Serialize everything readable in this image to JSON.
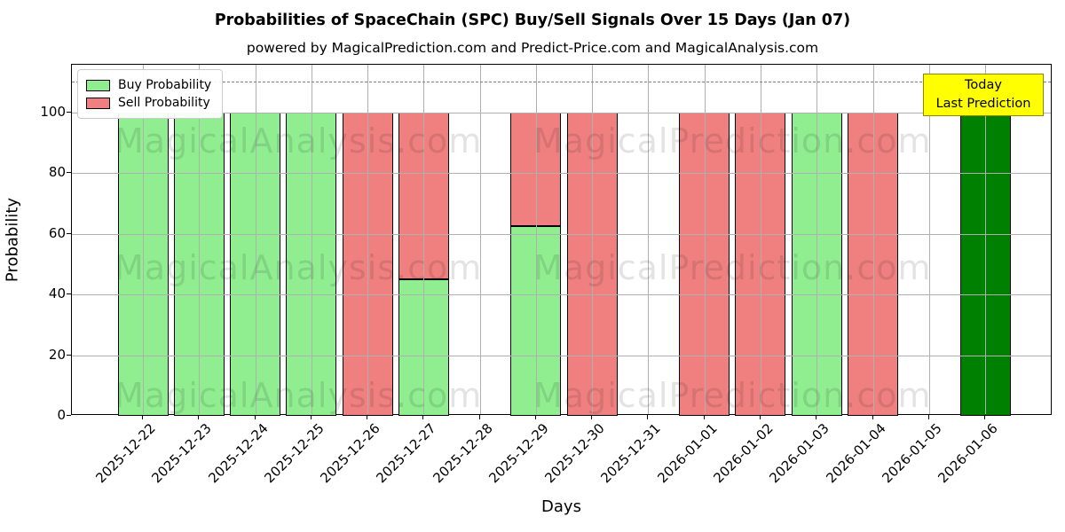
{
  "title": "Probabilities of SpaceChain (SPC) Buy/Sell Signals Over 15 Days (Jan 07)",
  "subtitle": "powered by MagicalPrediction.com and Predict-Price.com and MagicalAnalysis.com",
  "watermarks": {
    "left_text": "MagicalAnalysis.com",
    "right_text": "MagicalPrediction.com"
  },
  "legend": {
    "items": [
      {
        "label": "Buy Probability",
        "color": "#90EE90"
      },
      {
        "label": "Sell Probability",
        "color": "#F08080"
      }
    ]
  },
  "today_box": {
    "line1": "Today",
    "line2": "Last Prediction",
    "bg": "#FFFF00"
  },
  "axes": {
    "ylabel": "Probability",
    "xlabel": "Days",
    "yticks": [
      0,
      20,
      40,
      60,
      80,
      100
    ]
  },
  "chart_data": {
    "type": "bar",
    "stacked": true,
    "title": "Probabilities of SpaceChain (SPC) Buy/Sell Signals Over 15 Days (Jan 07)",
    "xlabel": "Days",
    "ylabel": "Probability",
    "ylim": [
      0,
      115.6
    ],
    "grid": true,
    "legend_position": "upper left",
    "dashed_threshold_line_y": 110,
    "categories": [
      "2025-12-22",
      "2025-12-23",
      "2025-12-24",
      "2025-12-25",
      "2025-12-26",
      "2025-12-27",
      "2025-12-28",
      "2025-12-29",
      "2025-12-30",
      "2025-12-31",
      "2026-01-01",
      "2026-01-02",
      "2026-01-03",
      "2026-01-04",
      "2026-01-05",
      "2026-01-06"
    ],
    "series": [
      {
        "name": "Buy Probability",
        "color": "#90EE90",
        "values": [
          100,
          100,
          100,
          100,
          0,
          45,
          0,
          62.5,
          0,
          0,
          0,
          0,
          100,
          0,
          0,
          0
        ]
      },
      {
        "name": "Sell Probability",
        "color": "#F08080",
        "values": [
          0,
          0,
          0,
          0,
          100,
          55,
          0,
          37.5,
          100,
          0,
          100,
          100,
          0,
          100,
          0,
          0
        ]
      },
      {
        "name": "Today / Last Prediction",
        "color": "#008000",
        "values": [
          0,
          0,
          0,
          0,
          0,
          0,
          0,
          0,
          0,
          0,
          0,
          0,
          0,
          0,
          0,
          100
        ]
      }
    ],
    "annotation": "Today / Last Prediction box above 2026-01-06 bar"
  }
}
